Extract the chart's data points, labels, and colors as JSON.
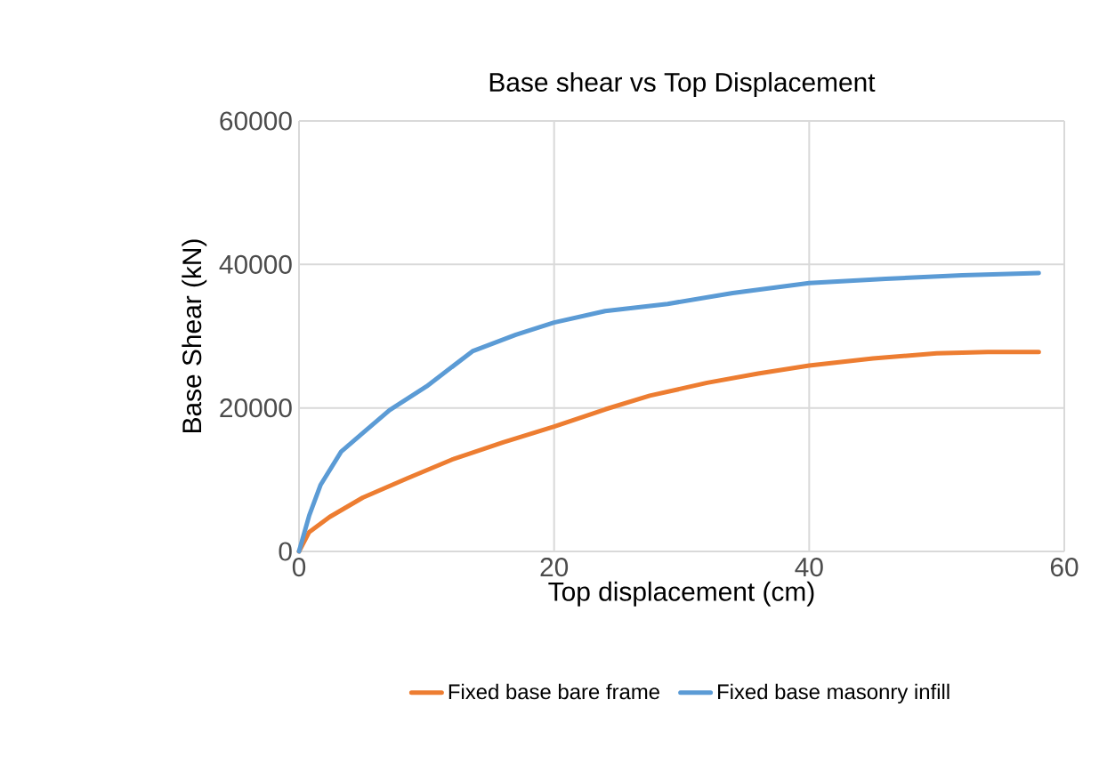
{
  "chart_data": {
    "type": "line",
    "title": "Base shear vs Top Displacement",
    "xlabel": "Top displacement (cm)",
    "ylabel": "Base Shear (kN)",
    "xlim": [
      0,
      60
    ],
    "xticks": [
      0,
      20,
      40,
      60
    ],
    "ylim": [
      0,
      60000
    ],
    "yticks": [
      0,
      20000,
      40000,
      60000
    ],
    "grid": true,
    "legend": "bottom",
    "marker": "none",
    "line_style": "solid",
    "series": [
      {
        "name": "Fixed base bare frame",
        "color": "#ed7d31",
        "x": [
          0,
          0.8,
          2.4,
          5,
          8.5,
          12,
          16,
          20,
          24,
          27.5,
          32,
          36,
          40,
          45,
          50,
          54,
          58
        ],
        "values": [
          0,
          2700,
          4800,
          7500,
          10200,
          12800,
          15200,
          17400,
          19800,
          21700,
          23500,
          24800,
          25900,
          26900,
          27600,
          27800,
          27800
        ]
      },
      {
        "name": "Fixed base masonry infill",
        "color": "#5b9bd5",
        "x": [
          0,
          0.8,
          1.7,
          3.3,
          5,
          7.1,
          10,
          13.6,
          17,
          20,
          24,
          28.9,
          34,
          40,
          46,
          52,
          58
        ],
        "values": [
          0,
          5000,
          9300,
          13900,
          16500,
          19700,
          23000,
          27900,
          30200,
          31900,
          33500,
          34500,
          36000,
          37400,
          38000,
          38500,
          38800
        ]
      }
    ]
  }
}
